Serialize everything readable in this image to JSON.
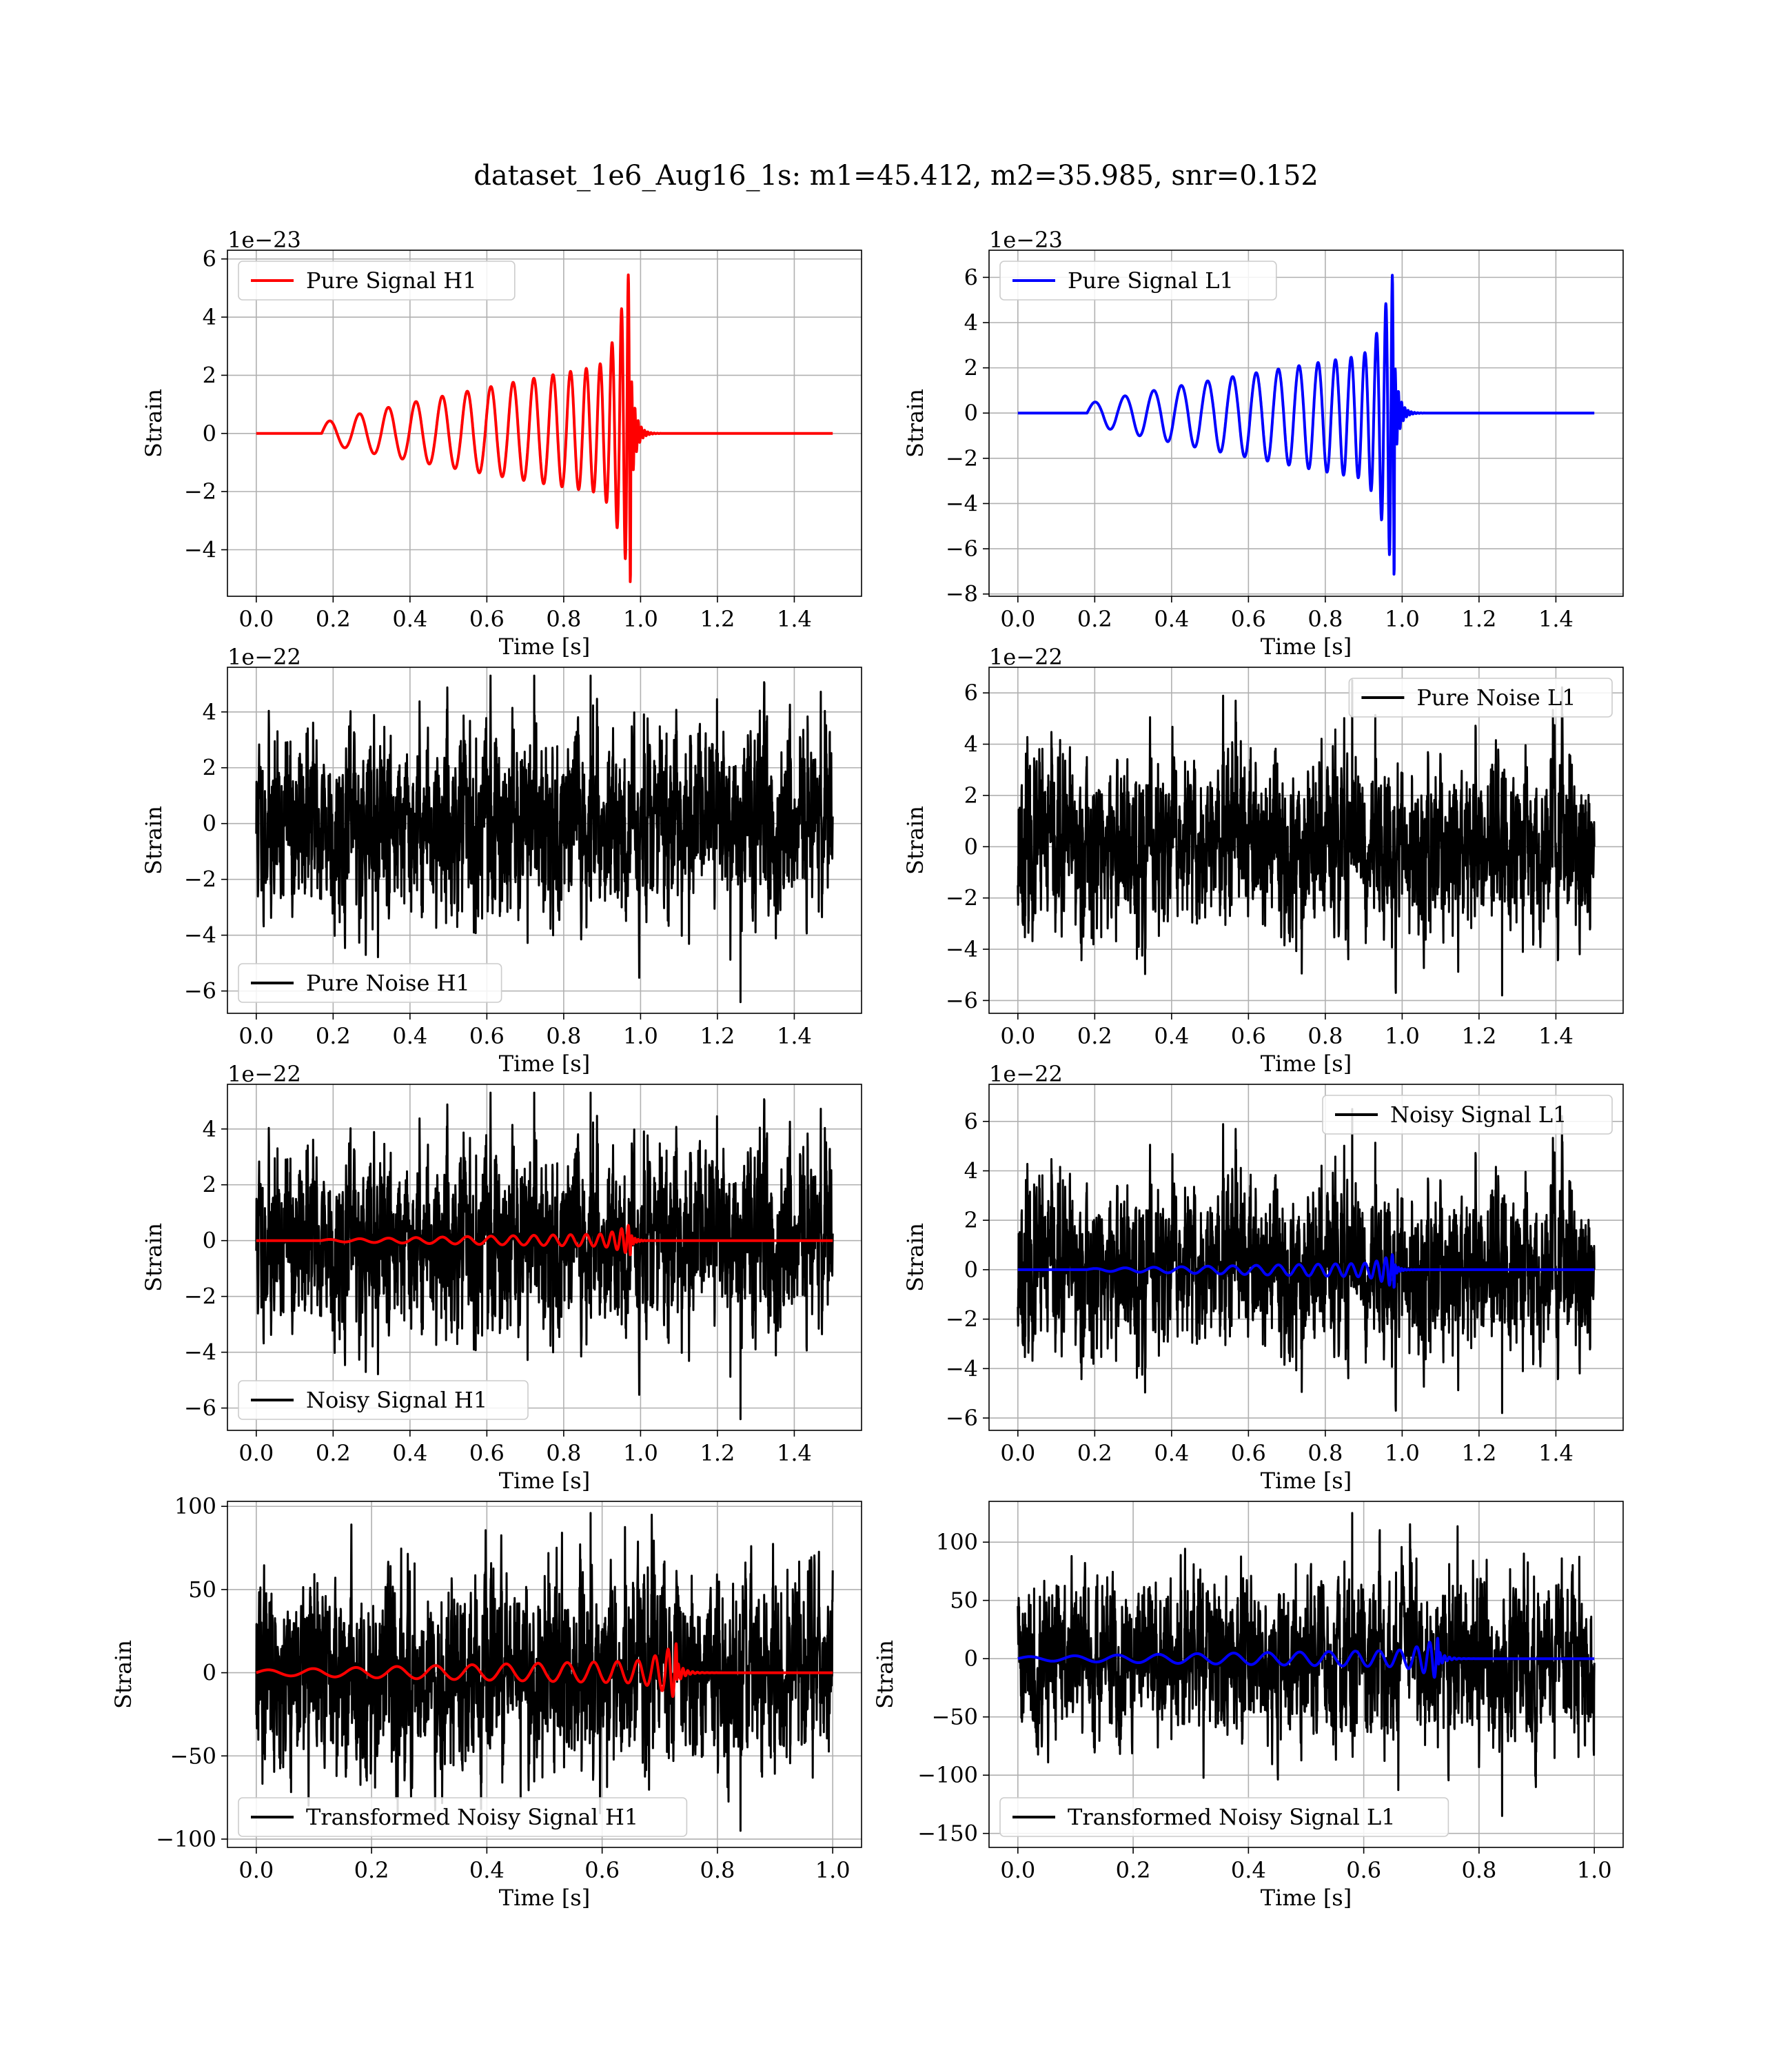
{
  "suptitle": "dataset_1e6_Aug16_1s: m1=45.412, m2=35.985, snr=0.152",
  "colors": {
    "h1_signal": "#ff0000",
    "l1_signal": "#0000ff",
    "noise": "#000000"
  },
  "chart_data": [
    {
      "type": "line",
      "name": "pure-signal-h1",
      "xlabel": "Time [s]",
      "ylabel": "Strain",
      "offset_text": "1e−23",
      "xlim": [
        -0.075,
        1.575
      ],
      "ylim": [
        -5.6,
        6.3
      ],
      "xticks": [
        0.0,
        0.2,
        0.4,
        0.6,
        0.8,
        1.0,
        1.2,
        1.4
      ],
      "xtick_labels": [
        "0.0",
        "0.2",
        "0.4",
        "0.6",
        "0.8",
        "1.0",
        "1.2",
        "1.4"
      ],
      "yticks": [
        -4,
        -2,
        0,
        2,
        4,
        6
      ],
      "ytick_labels": [
        "−4",
        "−2",
        "0",
        "2",
        "4",
        "6"
      ],
      "grid": true,
      "legend": "upper-left",
      "series": [
        {
          "name": "Pure Signal H1",
          "color": "#ff0000",
          "kind": "chirp",
          "x_range": [
            0.0,
            1.5
          ],
          "t_start": 0.17,
          "t_merge": 0.975,
          "peak": 6.0,
          "trough": -5.3,
          "start_amp": 0.35
        }
      ]
    },
    {
      "type": "line",
      "name": "pure-signal-l1",
      "xlabel": "Time [s]",
      "ylabel": "Strain",
      "offset_text": "1e−23",
      "xlim": [
        -0.075,
        1.575
      ],
      "ylim": [
        -8.1,
        7.2
      ],
      "xticks": [
        0.0,
        0.2,
        0.4,
        0.6,
        0.8,
        1.0,
        1.2,
        1.4
      ],
      "xtick_labels": [
        "0.0",
        "0.2",
        "0.4",
        "0.6",
        "0.8",
        "1.0",
        "1.2",
        "1.4"
      ],
      "yticks": [
        -8,
        -6,
        -4,
        -2,
        0,
        2,
        4,
        6
      ],
      "ytick_labels": [
        "−8",
        "−6",
        "−4",
        "−2",
        "0",
        "2",
        "4",
        "6"
      ],
      "grid": true,
      "legend": "upper-left",
      "series": [
        {
          "name": "Pure Signal L1",
          "color": "#0000ff",
          "kind": "chirp",
          "x_range": [
            0.0,
            1.5
          ],
          "t_start": 0.18,
          "t_merge": 0.98,
          "peak": 6.6,
          "trough": -7.5,
          "start_amp": 0.4
        }
      ]
    },
    {
      "type": "line",
      "name": "pure-noise-h1",
      "xlabel": "Time [s]",
      "ylabel": "Strain",
      "offset_text": "1e−22",
      "xlim": [
        -0.075,
        1.575
      ],
      "ylim": [
        -6.8,
        5.6
      ],
      "xticks": [
        0.0,
        0.2,
        0.4,
        0.6,
        0.8,
        1.0,
        1.2,
        1.4
      ],
      "xtick_labels": [
        "0.0",
        "0.2",
        "0.4",
        "0.6",
        "0.8",
        "1.0",
        "1.2",
        "1.4"
      ],
      "yticks": [
        -6,
        -4,
        -2,
        0,
        2,
        4
      ],
      "ytick_labels": [
        "−6",
        "−4",
        "−2",
        "0",
        "2",
        "4"
      ],
      "grid": true,
      "legend": "lower-left",
      "series": [
        {
          "name": "Pure Noise H1",
          "color": "#000000",
          "kind": "noise",
          "x_range": [
            0.0,
            1.5
          ],
          "sigma": 1.55,
          "seed": 11,
          "max": 5.3,
          "min": -6.4
        }
      ]
    },
    {
      "type": "line",
      "name": "pure-noise-l1",
      "xlabel": "Time [s]",
      "ylabel": "Strain",
      "offset_text": "1e−22",
      "xlim": [
        -0.075,
        1.575
      ],
      "ylim": [
        -6.5,
        7.0
      ],
      "xticks": [
        0.0,
        0.2,
        0.4,
        0.6,
        0.8,
        1.0,
        1.2,
        1.4
      ],
      "xtick_labels": [
        "0.0",
        "0.2",
        "0.4",
        "0.6",
        "0.8",
        "1.0",
        "1.2",
        "1.4"
      ],
      "yticks": [
        -6,
        -4,
        -2,
        0,
        2,
        4,
        6
      ],
      "ytick_labels": [
        "−6",
        "−4",
        "−2",
        "0",
        "2",
        "4",
        "6"
      ],
      "grid": true,
      "legend": "upper-right",
      "series": [
        {
          "name": "Pure Noise L1",
          "color": "#000000",
          "kind": "noise",
          "x_range": [
            0.0,
            1.5
          ],
          "sigma": 1.6,
          "seed": 23,
          "max": 6.5,
          "min": -5.8
        }
      ]
    },
    {
      "type": "line",
      "name": "noisy-signal-h1",
      "xlabel": "Time [s]",
      "ylabel": "Strain",
      "offset_text": "1e−22",
      "xlim": [
        -0.075,
        1.575
      ],
      "ylim": [
        -6.8,
        5.6
      ],
      "xticks": [
        0.0,
        0.2,
        0.4,
        0.6,
        0.8,
        1.0,
        1.2,
        1.4
      ],
      "xtick_labels": [
        "0.0",
        "0.2",
        "0.4",
        "0.6",
        "0.8",
        "1.0",
        "1.2",
        "1.4"
      ],
      "yticks": [
        -6,
        -4,
        -2,
        0,
        2,
        4
      ],
      "ytick_labels": [
        "−6",
        "−4",
        "−2",
        "0",
        "2",
        "4"
      ],
      "grid": true,
      "legend": "lower-left",
      "series": [
        {
          "name": "Noisy Signal H1",
          "color": "#000000",
          "kind": "noise",
          "x_range": [
            0.0,
            1.5
          ],
          "sigma": 1.55,
          "seed": 11,
          "max": 5.3,
          "min": -6.4
        },
        {
          "color": "#ff0000",
          "kind": "chirp",
          "x_range": [
            0.0,
            1.5
          ],
          "t_start": 0.17,
          "t_merge": 0.975,
          "peak": 0.6,
          "trough": -0.53,
          "start_amp": 0.035
        }
      ]
    },
    {
      "type": "line",
      "name": "noisy-signal-l1",
      "xlabel": "Time [s]",
      "ylabel": "Strain",
      "offset_text": "1e−22",
      "xlim": [
        -0.075,
        1.575
      ],
      "ylim": [
        -6.5,
        7.5
      ],
      "xticks": [
        0.0,
        0.2,
        0.4,
        0.6,
        0.8,
        1.0,
        1.2,
        1.4
      ],
      "xtick_labels": [
        "0.0",
        "0.2",
        "0.4",
        "0.6",
        "0.8",
        "1.0",
        "1.2",
        "1.4"
      ],
      "yticks": [
        -6,
        -4,
        -2,
        0,
        2,
        4,
        6
      ],
      "ytick_labels": [
        "−6",
        "−4",
        "−2",
        "0",
        "2",
        "4",
        "6"
      ],
      "grid": true,
      "legend": "upper-right",
      "series": [
        {
          "name": "Noisy Signal L1",
          "color": "#000000",
          "kind": "noise",
          "x_range": [
            0.0,
            1.5
          ],
          "sigma": 1.6,
          "seed": 23,
          "max": 6.5,
          "min": -5.8
        },
        {
          "color": "#0000ff",
          "kind": "chirp",
          "x_range": [
            0.0,
            1.5
          ],
          "t_start": 0.18,
          "t_merge": 0.98,
          "peak": 0.66,
          "trough": -0.75,
          "start_amp": 0.04
        }
      ]
    },
    {
      "type": "line",
      "name": "transformed-noisy-signal-h1",
      "xlabel": "Time [s]",
      "ylabel": "Strain",
      "offset_text": "",
      "xlim": [
        -0.05,
        1.05
      ],
      "ylim": [
        -105,
        103
      ],
      "xticks": [
        0.0,
        0.2,
        0.4,
        0.6,
        0.8,
        1.0
      ],
      "xtick_labels": [
        "0.0",
        "0.2",
        "0.4",
        "0.6",
        "0.8",
        "1.0"
      ],
      "yticks": [
        -100,
        -50,
        0,
        50,
        100
      ],
      "ytick_labels": [
        "−100",
        "−50",
        "0",
        "50",
        "100"
      ],
      "grid": true,
      "legend": "lower-left",
      "series": [
        {
          "name": "Transformed Noisy Signal H1",
          "color": "#000000",
          "kind": "noise",
          "x_range": [
            0.0,
            1.0
          ],
          "sigma": 27,
          "seed": 37,
          "max": 96,
          "min": -95
        },
        {
          "color": "#ff0000",
          "kind": "chirp",
          "x_range": [
            0.0,
            1.0
          ],
          "t_start": 0.0,
          "t_merge": 0.73,
          "peak": 18,
          "trough": -16,
          "start_amp": 1.5
        }
      ]
    },
    {
      "type": "line",
      "name": "transformed-noisy-signal-l1",
      "xlabel": "Time [s]",
      "ylabel": "Strain",
      "offset_text": "",
      "xlim": [
        -0.05,
        1.05
      ],
      "ylim": [
        -162,
        135
      ],
      "xticks": [
        0.0,
        0.2,
        0.4,
        0.6,
        0.8,
        1.0
      ],
      "xtick_labels": [
        "0.0",
        "0.2",
        "0.4",
        "0.6",
        "0.8",
        "1.0"
      ],
      "yticks": [
        -150,
        -100,
        -50,
        0,
        50,
        100
      ],
      "ytick_labels": [
        "−150",
        "−100",
        "−50",
        "0",
        "50",
        "100"
      ],
      "grid": true,
      "legend": "lower-left",
      "series": [
        {
          "name": "Transformed Noisy Signal L1",
          "color": "#000000",
          "kind": "noise",
          "x_range": [
            0.0,
            1.0
          ],
          "sigma": 32,
          "seed": 41,
          "max": 125,
          "min": -135
        },
        {
          "color": "#0000ff",
          "kind": "chirp",
          "x_range": [
            0.0,
            1.0
          ],
          "t_start": 0.0,
          "t_merge": 0.73,
          "peak": 18,
          "trough": -18,
          "start_amp": 1.5
        }
      ]
    }
  ]
}
